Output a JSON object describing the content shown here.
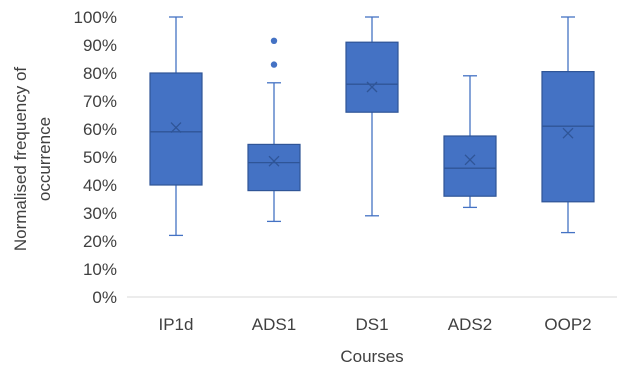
{
  "chart_data": {
    "type": "box",
    "title": "",
    "xlabel": "Courses",
    "ylabel_lines": [
      "Normalised frequency of",
      "occurrence"
    ],
    "ylim": [
      0,
      100
    ],
    "y_ticks": [
      {
        "value": 0,
        "label": "0%"
      },
      {
        "value": 10,
        "label": "10%"
      },
      {
        "value": 20,
        "label": "20%"
      },
      {
        "value": 30,
        "label": "30%"
      },
      {
        "value": 40,
        "label": "40%"
      },
      {
        "value": 50,
        "label": "50%"
      },
      {
        "value": 60,
        "label": "60%"
      },
      {
        "value": 70,
        "label": "70%"
      },
      {
        "value": 80,
        "label": "80%"
      },
      {
        "value": 90,
        "label": "90%"
      },
      {
        "value": 100,
        "label": "100%"
      }
    ],
    "grid": false,
    "legend": "none",
    "categories": [
      "IP1d",
      "ADS1",
      "DS1",
      "ADS2",
      "OOP2"
    ],
    "boxes": [
      {
        "category": "IP1d",
        "min": 22,
        "q1": 40,
        "median": 59,
        "q3": 80,
        "max": 100,
        "mean": 60.5,
        "outliers": []
      },
      {
        "category": "ADS1",
        "min": 27,
        "q1": 38,
        "median": 48,
        "q3": 54.5,
        "max": 76.5,
        "mean": 48.5,
        "outliers": [
          83,
          91.5
        ]
      },
      {
        "category": "DS1",
        "min": 29,
        "q1": 66,
        "median": 76,
        "q3": 91,
        "max": 100,
        "mean": 75,
        "outliers": []
      },
      {
        "category": "ADS2",
        "min": 32,
        "q1": 36,
        "median": 46,
        "q3": 57.5,
        "max": 79,
        "mean": 49,
        "outliers": []
      },
      {
        "category": "OOP2",
        "min": 23,
        "q1": 34,
        "median": 61,
        "q3": 80.5,
        "max": 100,
        "mean": 58.5,
        "outliers": []
      }
    ],
    "colors": {
      "box_fill": "#4472c4",
      "box_stroke": "#2f5597",
      "whisker": "#4472c4",
      "median_line": "#2f5597",
      "mean_marker": "#2f5597",
      "outlier": "#4472c4",
      "axis_line": "#d9d9d9",
      "text": "#404040"
    }
  }
}
